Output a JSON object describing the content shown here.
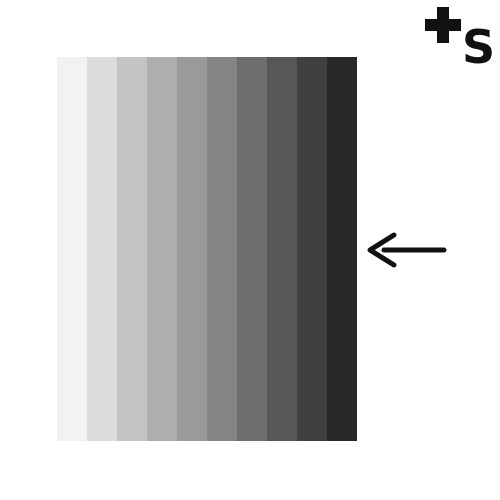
{
  "logo": {
    "letter": "S",
    "icon": "plus-icon",
    "color": "#111111"
  },
  "indicator": {
    "icon": "arrow-left-icon",
    "color": "#111111"
  },
  "swatches": [
    {
      "color": "#f2f2f2"
    },
    {
      "color": "#dcdcdc"
    },
    {
      "color": "#c4c4c4"
    },
    {
      "color": "#afafaf"
    },
    {
      "color": "#9a9a9a"
    },
    {
      "color": "#858585"
    },
    {
      "color": "#6e6e6e"
    },
    {
      "color": "#575757"
    },
    {
      "color": "#404040"
    },
    {
      "color": "#282828"
    }
  ]
}
